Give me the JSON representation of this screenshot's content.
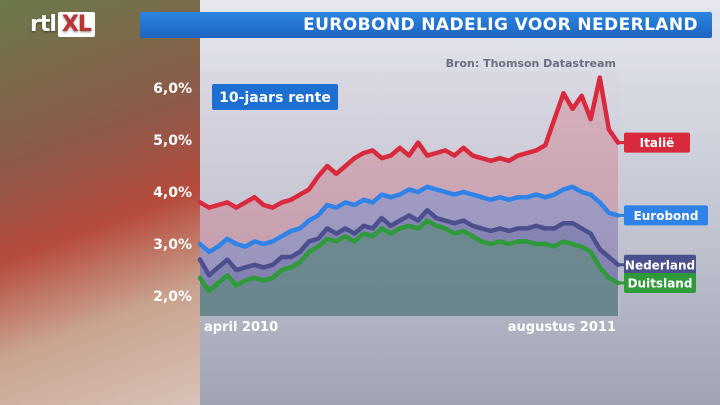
{
  "header": {
    "logo_text": "rtl",
    "logo_xl": "XL",
    "title": "EUROBOND NADELIG VOOR NEDERLAND",
    "source": "Bron: Thomson Datastream"
  },
  "colors": {
    "italie": "#d8293d",
    "eurobond": "#2f83e8",
    "nederland": "#4b4f8e",
    "duitsland": "#2f9a3a",
    "title_blue": "#1e6fd2"
  },
  "chart_data": {
    "type": "line",
    "title": "10-jaars rente",
    "xlabel": "",
    "ylabel": "",
    "x_tick_labels": [
      "april 2010",
      "augustus 2011"
    ],
    "y_ticks": [
      "2,0%",
      "3,0%",
      "4,0%",
      "5,0%",
      "6,0%"
    ],
    "ylim": [
      1.8,
      6.4
    ],
    "grid": false,
    "legend": "labels at line ends (right)",
    "series": [
      {
        "name": "Italië",
        "values": [
          3.8,
          3.7,
          3.75,
          3.8,
          3.7,
          3.8,
          3.9,
          3.75,
          3.7,
          3.8,
          3.85,
          3.95,
          4.05,
          4.3,
          4.5,
          4.35,
          4.5,
          4.65,
          4.75,
          4.8,
          4.65,
          4.7,
          4.85,
          4.7,
          4.95,
          4.7,
          4.75,
          4.8,
          4.7,
          4.85,
          4.7,
          4.65,
          4.6,
          4.65,
          4.6,
          4.7,
          4.75,
          4.8,
          4.9,
          5.4,
          5.9,
          5.6,
          5.85,
          5.4,
          6.2,
          5.2,
          4.95
        ]
      },
      {
        "name": "Eurobond",
        "values": [
          3.0,
          2.85,
          2.95,
          3.1,
          3.0,
          2.95,
          3.05,
          3.0,
          3.05,
          3.15,
          3.25,
          3.3,
          3.45,
          3.55,
          3.75,
          3.7,
          3.8,
          3.75,
          3.85,
          3.8,
          3.95,
          3.9,
          3.95,
          4.05,
          4.0,
          4.1,
          4.05,
          4.0,
          3.95,
          4.0,
          3.95,
          3.9,
          3.85,
          3.9,
          3.85,
          3.9,
          3.9,
          3.95,
          3.9,
          3.95,
          4.05,
          4.1,
          4.0,
          3.95,
          3.8,
          3.6,
          3.55
        ]
      },
      {
        "name": "Nederland",
        "values": [
          2.7,
          2.4,
          2.55,
          2.7,
          2.5,
          2.55,
          2.6,
          2.55,
          2.6,
          2.75,
          2.75,
          2.85,
          3.05,
          3.1,
          3.3,
          3.2,
          3.3,
          3.2,
          3.35,
          3.3,
          3.5,
          3.35,
          3.45,
          3.55,
          3.45,
          3.65,
          3.5,
          3.45,
          3.4,
          3.45,
          3.35,
          3.3,
          3.25,
          3.3,
          3.25,
          3.3,
          3.3,
          3.35,
          3.3,
          3.3,
          3.4,
          3.4,
          3.3,
          3.2,
          2.9,
          2.75,
          2.6
        ]
      },
      {
        "name": "Duitsland",
        "values": [
          2.35,
          2.1,
          2.25,
          2.4,
          2.2,
          2.3,
          2.35,
          2.3,
          2.35,
          2.5,
          2.55,
          2.65,
          2.85,
          2.95,
          3.1,
          3.05,
          3.15,
          3.05,
          3.2,
          3.15,
          3.3,
          3.2,
          3.3,
          3.35,
          3.3,
          3.45,
          3.35,
          3.3,
          3.2,
          3.25,
          3.15,
          3.05,
          3.0,
          3.05,
          3.0,
          3.05,
          3.05,
          3.0,
          3.0,
          2.95,
          3.05,
          3.0,
          2.95,
          2.85,
          2.55,
          2.35,
          2.25
        ]
      }
    ]
  }
}
